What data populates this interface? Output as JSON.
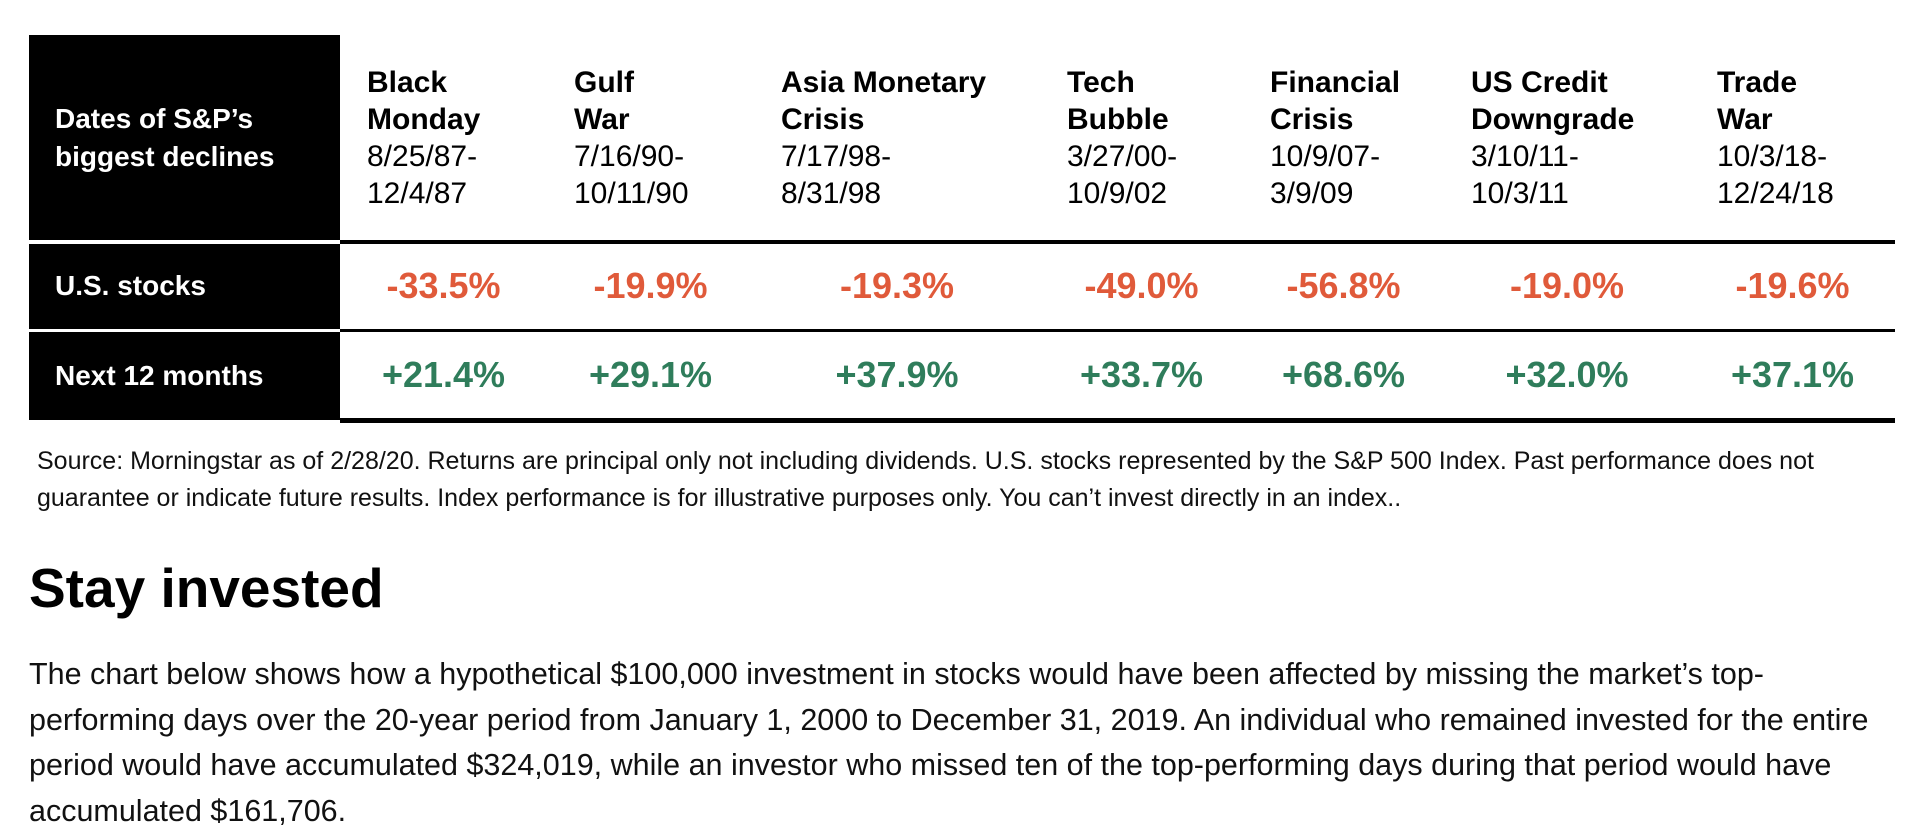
{
  "table": {
    "row_labels": {
      "header": "Dates of S&P’s biggest declines",
      "us_stocks": "U.S. stocks",
      "next_12": "Next 12 months"
    },
    "events": [
      {
        "name": "Black Monday",
        "dates": "8/25/87-12/4/87",
        "us_stocks": "-33.5%",
        "next_12": "+21.4%"
      },
      {
        "name": "Gulf War",
        "dates": "7/16/90-10/11/90",
        "us_stocks": "-19.9%",
        "next_12": "+29.1%"
      },
      {
        "name": "Asia Monetary Crisis",
        "dates": "7/17/98-8/31/98",
        "us_stocks": "-19.3%",
        "next_12": "+37.9%"
      },
      {
        "name": "Tech Bubble",
        "dates": "3/27/00-10/9/02",
        "us_stocks": "-49.0%",
        "next_12": "+33.7%"
      },
      {
        "name": "Financial Crisis",
        "dates": "10/9/07-3/9/09",
        "us_stocks": "-56.8%",
        "next_12": "+68.6%"
      },
      {
        "name": "US Credit Downgrade",
        "dates": "3/10/11-10/3/11",
        "us_stocks": "-19.0%",
        "next_12": "+32.0%"
      },
      {
        "name": "Trade War",
        "dates": "10/3/18-12/24/18",
        "us_stocks": "-19.6%",
        "next_12": "+37.1%"
      }
    ],
    "colors": {
      "negative": "#e05a3a",
      "positive": "#2f7d5b",
      "header_bg": "#000000"
    }
  },
  "source_note": "Source: Morningstar as of 2/28/20. Returns are principal only not including dividends. U.S. stocks represented by the S&P 500 Index. Past performance does not guarantee or indicate future results. Index performance is for illustrative purposes only. You can’t invest directly in an index..",
  "section": {
    "title": "Stay invested",
    "body": "The chart below shows how a hypothetical $100,000 investment in stocks would have been affected by missing the market’s top-performing days over the 20-year period from January 1, 2000 to December 31, 2019.  An individual who remained invested for the entire period would have accumulated $324,019, while an investor who missed ten of the top-performing days during that period would have accumulated $161,706."
  }
}
